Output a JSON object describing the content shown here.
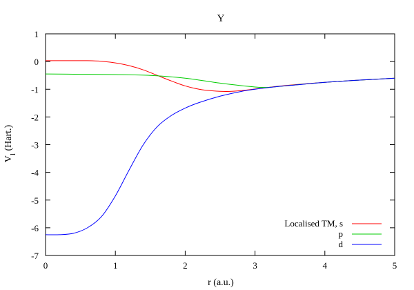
{
  "chart_data": {
    "type": "line",
    "title": "Y",
    "xlabel": "r (a.u.)",
    "ylabel": {
      "main": "V",
      "sub": "l",
      "unit": " (Hart.)"
    },
    "xlim": [
      0,
      5
    ],
    "ylim": [
      -7,
      1
    ],
    "xticks": [
      0,
      1,
      2,
      3,
      4,
      5
    ],
    "yticks": [
      1,
      0,
      -1,
      -2,
      -3,
      -4,
      -5,
      -6,
      -7
    ],
    "grid": false,
    "legend_position": "bottom-right",
    "series": [
      {
        "name": "Localised TM, s",
        "color": "#ff0000",
        "x": [
          0,
          0.2,
          0.4,
          0.6,
          0.8,
          1.0,
          1.2,
          1.4,
          1.6,
          1.8,
          2.0,
          2.2,
          2.4,
          2.6,
          2.8,
          3.0,
          3.2,
          3.5,
          4.0,
          4.5,
          5.0
        ],
        "y": [
          0.03,
          0.03,
          0.03,
          0.03,
          0.01,
          -0.05,
          -0.15,
          -0.3,
          -0.5,
          -0.7,
          -0.88,
          -1.0,
          -1.06,
          -1.08,
          -1.05,
          -0.99,
          -0.93,
          -0.85,
          -0.75,
          -0.67,
          -0.6
        ]
      },
      {
        "name": "p",
        "color": "#00cc00",
        "x": [
          0,
          0.5,
          1.0,
          1.5,
          2.0,
          2.5,
          3.0,
          3.2,
          3.5,
          4.0,
          4.5,
          5.0
        ],
        "y": [
          -0.45,
          -0.46,
          -0.47,
          -0.5,
          -0.6,
          -0.78,
          -0.92,
          -0.93,
          -0.86,
          -0.75,
          -0.67,
          -0.6
        ]
      },
      {
        "name": "d",
        "color": "#0000ff",
        "x": [
          0,
          0.2,
          0.4,
          0.6,
          0.8,
          1.0,
          1.2,
          1.4,
          1.6,
          1.8,
          2.0,
          2.2,
          2.5,
          2.8,
          3.0,
          3.3,
          3.6,
          4.0,
          4.5,
          5.0
        ],
        "y": [
          -6.25,
          -6.25,
          -6.2,
          -6.0,
          -5.6,
          -4.85,
          -3.9,
          -3.0,
          -2.35,
          -1.95,
          -1.68,
          -1.48,
          -1.25,
          -1.08,
          -1.0,
          -0.91,
          -0.84,
          -0.75,
          -0.67,
          -0.6
        ]
      }
    ]
  }
}
